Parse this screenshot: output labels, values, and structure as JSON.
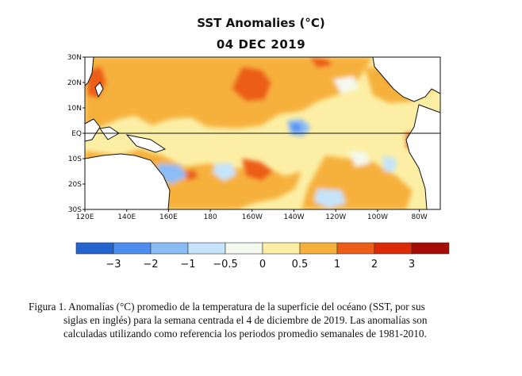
{
  "title": "SST Anomalies (°C)",
  "date": "04 DEC 2019",
  "map": {
    "lat_labels": [
      "30N",
      "20N",
      "10N",
      "EQ",
      "10S",
      "20S",
      "30S"
    ],
    "lon_labels": [
      "120E",
      "140E",
      "160E",
      "180",
      "160W",
      "140W",
      "120W",
      "100W",
      "80W"
    ],
    "lat_range": [
      -30,
      30
    ],
    "lon_range_east": [
      120,
      290
    ]
  },
  "colorbar": {
    "colors": [
      "#2563cf",
      "#4d8df0",
      "#8cbcf5",
      "#c5e4fa",
      "#f4f8ee",
      "#fcefa5",
      "#f6b13c",
      "#ec5d17",
      "#dc2a08",
      "#a60c07"
    ],
    "labels": [
      "−3",
      "−2",
      "−1",
      "−0.5",
      "0",
      "0.5",
      "1",
      "2",
      "3"
    ]
  },
  "caption": {
    "line1": "Figura 1. Anomalías (°C) promedio de la temperatura de la superficie del océano (SST, por sus",
    "line2": "siglas en inglés) para la semana centrada el 4 de diciembre de 2019. Las anomalías son",
    "line3": "calculadas utilizando como referencia los periodos promedio semanales de 1981-2010."
  }
}
